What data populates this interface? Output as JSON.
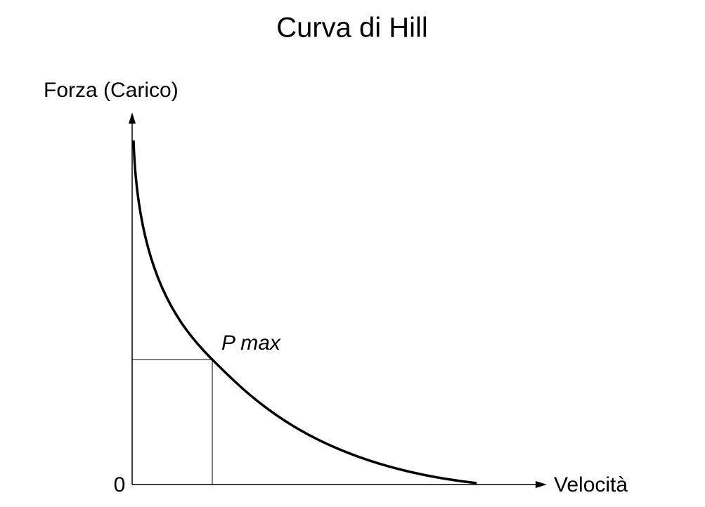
{
  "title": "Curva di Hill",
  "y_axis_label": "Forza (Carico)",
  "x_axis_label": "Velocità",
  "origin_label": "0",
  "point_label": "P max"
}
